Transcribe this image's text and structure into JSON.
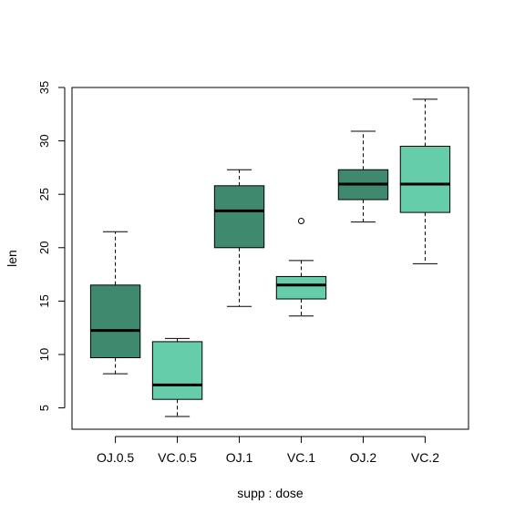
{
  "chart_data": {
    "type": "boxplot",
    "xlabel": "supp : dose",
    "ylabel": "len",
    "ylim": [
      3,
      35
    ],
    "yticks": [
      5,
      10,
      15,
      20,
      25,
      30,
      35
    ],
    "colors": {
      "OJ": "#3F8A6F",
      "VC": "#66CDAA"
    },
    "boxes": [
      {
        "label": "OJ.0.5",
        "supp": "OJ",
        "whisker_low": 8.2,
        "q1": 9.7,
        "median": 12.25,
        "q3": 16.5,
        "whisker_high": 21.5,
        "outliers": []
      },
      {
        "label": "VC.0.5",
        "supp": "VC",
        "whisker_low": 4.2,
        "q1": 5.8,
        "median": 7.15,
        "q3": 11.2,
        "whisker_high": 11.5,
        "outliers": []
      },
      {
        "label": "OJ.1",
        "supp": "OJ",
        "whisker_low": 14.5,
        "q1": 20.0,
        "median": 23.45,
        "q3": 25.8,
        "whisker_high": 27.3,
        "outliers": []
      },
      {
        "label": "VC.1",
        "supp": "VC",
        "whisker_low": 13.6,
        "q1": 15.2,
        "median": 16.5,
        "q3": 17.3,
        "whisker_high": 18.8,
        "outliers": [
          22.5
        ]
      },
      {
        "label": "OJ.2",
        "supp": "OJ",
        "whisker_low": 22.4,
        "q1": 24.5,
        "median": 25.95,
        "q3": 27.3,
        "whisker_high": 30.9,
        "outliers": []
      },
      {
        "label": "VC.2",
        "supp": "VC",
        "whisker_low": 18.5,
        "q1": 23.3,
        "median": 25.95,
        "q3": 29.5,
        "whisker_high": 33.9,
        "outliers": []
      }
    ]
  }
}
